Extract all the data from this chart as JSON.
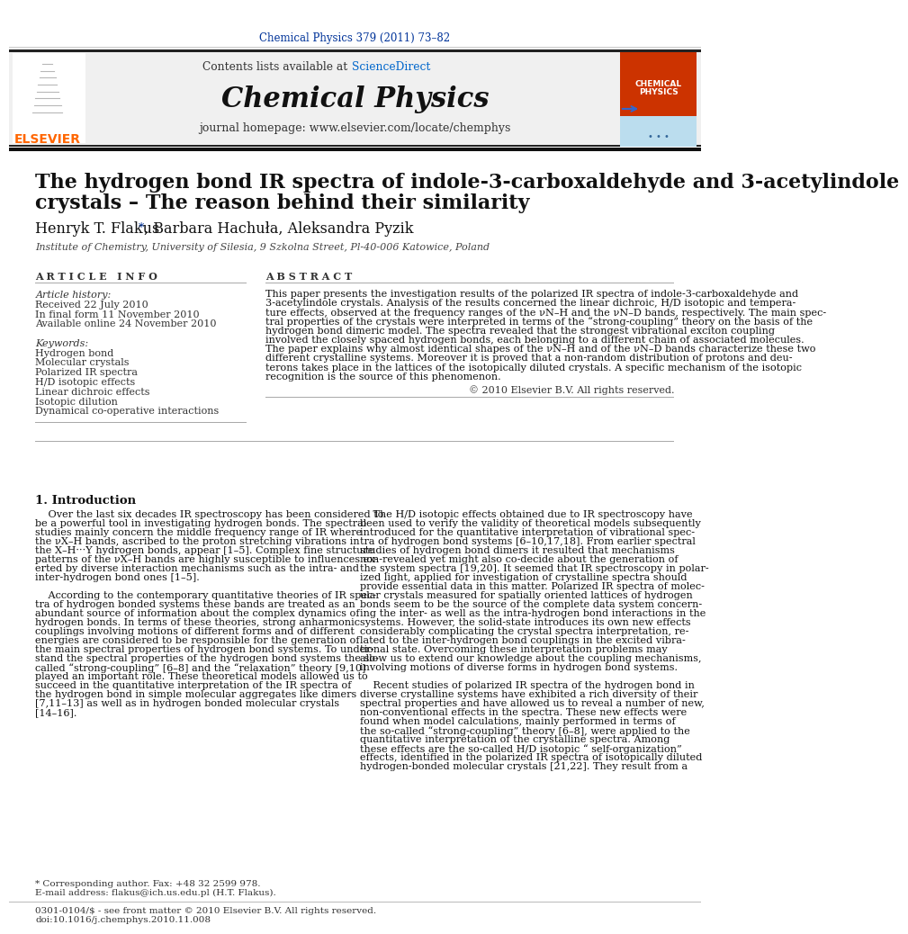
{
  "journal_ref": "Chemical Physics 379 (2011) 73–82",
  "contents_label": "Contents lists available at ",
  "sciencedirect": "ScienceDirect",
  "journal_name": "Chemical Physics",
  "journal_homepage": "journal homepage: www.elsevier.com/locate/chemphys",
  "title_line1": "The hydrogen bond IR spectra of indole-3-carboxaldehyde and 3-acetylindole",
  "title_line2": "crystals – The reason behind their similarity",
  "authors_part1": "Henryk T. Flakus ",
  "authors_star": "*",
  "authors_part2": ", Barbara Hachuła, Aleksandra Pyzik",
  "affiliation": "Institute of Chemistry, University of Silesia, 9 Szkolna Street, Pl-40-006 Katowice, Poland",
  "article_info_label": "A R T I C L E   I N F O",
  "abstract_label": "A B S T R A C T",
  "history_label": "Article history:",
  "received": "Received 22 July 2010",
  "final_form": "In final form 11 November 2010",
  "available": "Available online 24 November 2010",
  "keywords_label": "Keywords:",
  "keywords": [
    "Hydrogen bond",
    "Molecular crystals",
    "Polarized IR spectra",
    "H/D isotopic effects",
    "Linear dichroic effects",
    "Isotopic dilution",
    "Dynamical co-operative interactions"
  ],
  "abstract_lines": [
    "This paper presents the investigation results of the polarized IR spectra of indole-3-carboxaldehyde and",
    "3-acetylindole crystals. Analysis of the results concerned the linear dichroic, H/D isotopic and tempera-",
    "ture effects, observed at the frequency ranges of the νN–H and the νN–D bands, respectively. The main spec-",
    "tral properties of the crystals were interpreted in terms of the “strong-coupling” theory on the basis of the",
    "hydrogen bond dimeric model. The spectra revealed that the strongest vibrational exciton coupling",
    "involved the closely spaced hydrogen bonds, each belonging to a different chain of associated molecules.",
    "The paper explains why almost identical shapes of the νN–H and of the νN–D bands characterize these two",
    "different crystalline systems. Moreover it is proved that a non-random distribution of protons and deu-",
    "terons takes place in the lattices of the isotopically diluted crystals. A specific mechanism of the isotopic",
    "recognition is the source of this phenomenon."
  ],
  "copyright": "© 2010 Elsevier B.V. All rights reserved.",
  "intro_heading": "1. Introduction",
  "intro_col1_lines": [
    "    Over the last six decades IR spectroscopy has been considered to",
    "be a powerful tool in investigating hydrogen bonds. The spectral",
    "studies mainly concern the middle frequency range of IR where",
    "the νX–H bands, ascribed to the proton stretching vibrations in",
    "the X–H···Y hydrogen bonds, appear [1–5]. Complex fine structure",
    "patterns of the νX–H bands are highly susceptible to influences ex-",
    "erted by diverse interaction mechanisms such as the intra- and",
    "inter-hydrogen bond ones [1–5].",
    "",
    "    According to the contemporary quantitative theories of IR spec-",
    "tra of hydrogen bonded systems these bands are treated as an",
    "abundant source of information about the complex dynamics of",
    "hydrogen bonds. In terms of these theories, strong anharmonic",
    "couplings involving motions of different forms and of different",
    "energies are considered to be responsible for the generation of",
    "the main spectral properties of hydrogen bond systems. To under-",
    "stand the spectral properties of the hydrogen bond systems the so-",
    "called “strong-coupling” [6–8] and the “relaxation” theory [9,10]",
    "played an important role. These theoretical models allowed us to",
    "succeed in the quantitative interpretation of the IR spectra of",
    "the hydrogen bond in simple molecular aggregates like dimers",
    "[7,11–13] as well as in hydrogen bonded molecular crystals",
    "[14–16]."
  ],
  "intro_col2_lines": [
    "    The H/D isotopic effects obtained due to IR spectroscopy have",
    "been used to verify the validity of theoretical models subsequently",
    "introduced for the quantitative interpretation of vibrational spec-",
    "tra of hydrogen bond systems [6–10,17,18]. From earlier spectral",
    "studies of hydrogen bond dimers it resulted that mechanisms",
    "non-revealed yet might also co-decide about the generation of",
    "the system spectra [19,20]. It seemed that IR spectroscopy in polar-",
    "ized light, applied for investigation of crystalline spectra should",
    "provide essential data in this matter. Polarized IR spectra of molec-",
    "ular crystals measured for spatially oriented lattices of hydrogen",
    "bonds seem to be the source of the complete data system concern-",
    "ing the inter- as well as the intra-hydrogen bond interactions in the",
    "systems. However, the solid-state introduces its own new effects",
    "considerably complicating the crystal spectra interpretation, re-",
    "lated to the inter-hydrogen bond couplings in the excited vibra-",
    "tional state. Overcoming these interpretation problems may",
    "allow us to extend our knowledge about the coupling mechanisms,",
    "involving motions of diverse forms in hydrogen bond systems.",
    "",
    "    Recent studies of polarized IR spectra of the hydrogen bond in",
    "diverse crystalline systems have exhibited a rich diversity of their",
    "spectral properties and have allowed us to reveal a number of new,",
    "non-conventional effects in the spectra. These new effects were",
    "found when model calculations, mainly performed in terms of",
    "the so-called “strong-coupling” theory [6–8], were applied to the",
    "quantitative interpretation of the crystalline spectra. Among",
    "these effects are the so-called H/D isotopic “ self-organization”",
    "effects, identified in the polarized IR spectra of isotopically diluted",
    "hydrogen-bonded molecular crystals [21,22]. They result from a"
  ],
  "footnote_star": "* Corresponding author. Fax: +48 32 2599 978.",
  "footnote_email": "E-mail address: flakus@ich.us.edu.pl (H.T. Flakus).",
  "footnote_issn": "0301-0104/$ - see front matter © 2010 Elsevier B.V. All rights reserved.",
  "footnote_doi": "doi:10.1016/j.chemphys.2010.11.008",
  "color_blue": "#003399",
  "color_sciencedirect": "#0066cc",
  "color_elsevier_orange": "#FF6600",
  "color_header_bg": "#f0f0f0",
  "color_separator": "#999999"
}
